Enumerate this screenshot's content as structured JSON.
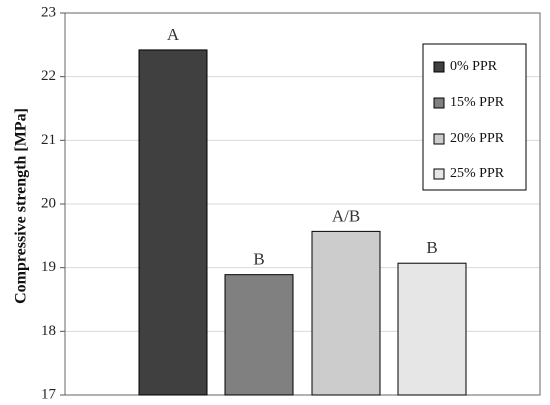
{
  "chart_data": {
    "type": "bar",
    "title": "",
    "xlabel": "",
    "ylabel": "Compressive strength [MPa]",
    "ylim": [
      17,
      23
    ],
    "yticks": [
      17,
      18,
      19,
      20,
      21,
      22,
      23
    ],
    "grid": "horizontal",
    "legend_position": "top-right",
    "series": [
      {
        "name": "0% PPR",
        "value": 22.42,
        "color": "#404040",
        "group_label": "A"
      },
      {
        "name": "15% PPR",
        "value": 18.89,
        "color": "#808080",
        "group_label": "B"
      },
      {
        "name": "20% PPR",
        "value": 19.57,
        "color": "#cccccc",
        "group_label": "A/B"
      },
      {
        "name": "25% PPR",
        "value": 19.07,
        "color": "#e6e6e6",
        "group_label": "B"
      }
    ]
  }
}
